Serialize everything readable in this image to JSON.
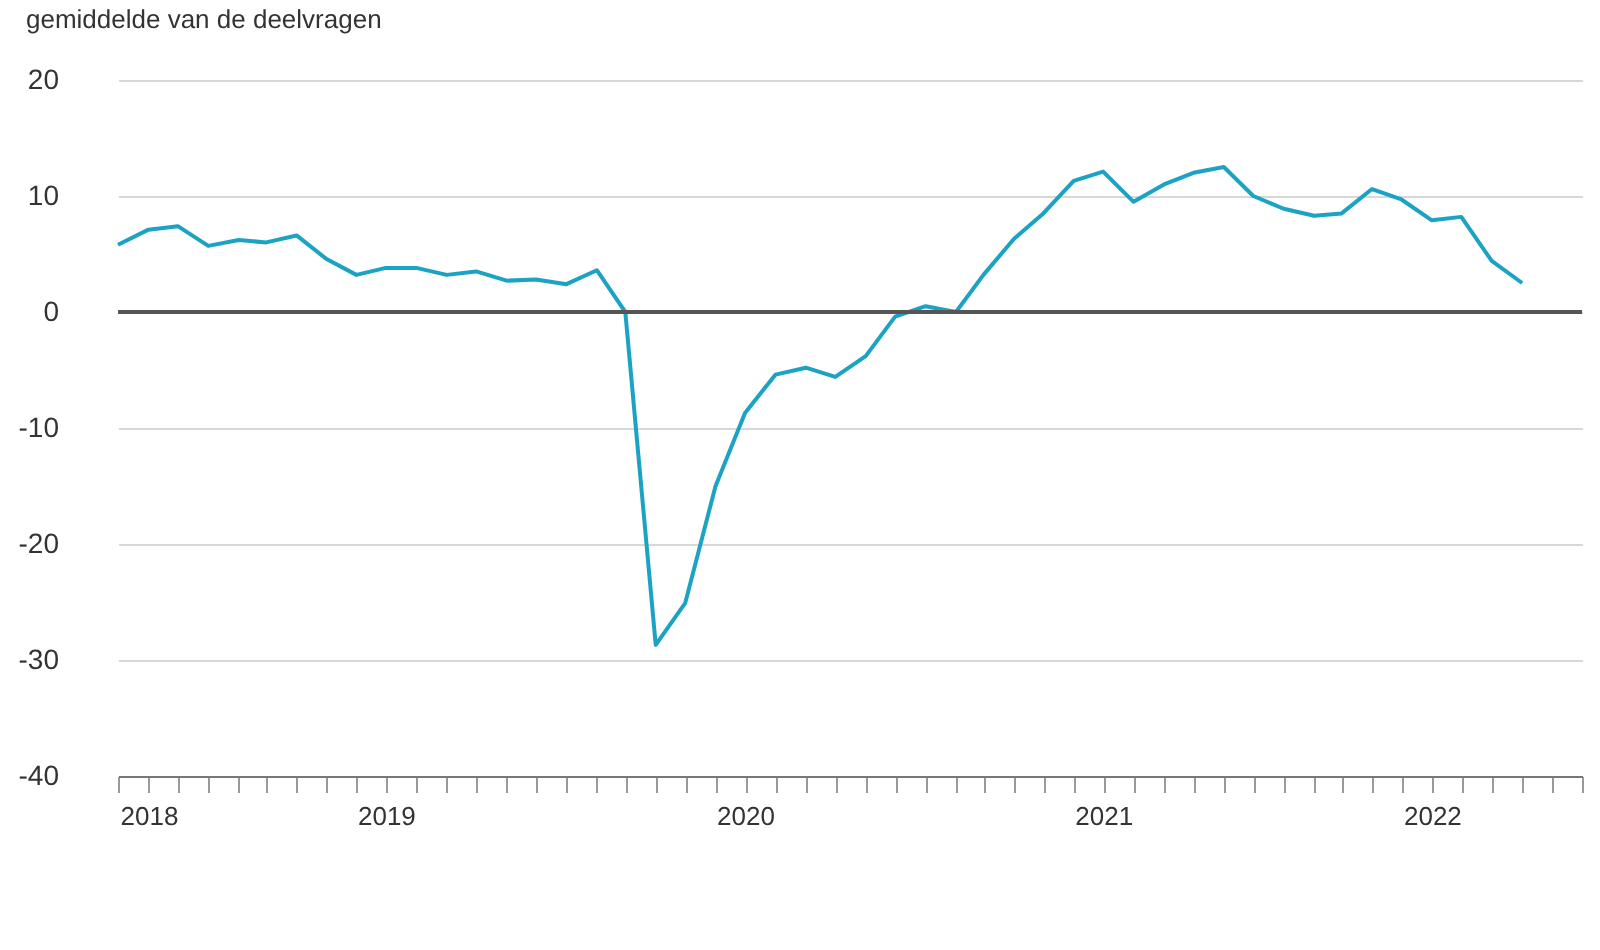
{
  "chart_data": {
    "type": "line",
    "title": "gemiddelde van de deelvragen",
    "x": [
      "2018-10",
      "2018-11",
      "2018-12",
      "2019-01",
      "2019-02",
      "2019-03",
      "2019-04",
      "2019-05",
      "2019-06",
      "2019-07",
      "2019-08",
      "2019-09",
      "2019-10",
      "2019-11",
      "2019-12",
      "2020-01",
      "2020-02",
      "2020-03",
      "2020-04",
      "2020-05",
      "2020-06",
      "2020-07",
      "2020-08",
      "2020-09",
      "2020-10",
      "2020-11",
      "2020-12",
      "2021-01",
      "2021-02",
      "2021-03",
      "2021-04",
      "2021-05",
      "2021-06",
      "2021-07",
      "2021-08",
      "2021-09",
      "2021-10",
      "2021-11",
      "2021-12",
      "2022-01",
      "2022-02",
      "2022-03",
      "2022-04",
      "2022-05",
      "2022-06",
      "2022-07",
      "2022-08",
      "2022-09"
    ],
    "series": [
      {
        "color": "#1ca3c4",
        "values": [
          5.8,
          7.1,
          7.4,
          5.7,
          6.2,
          6.0,
          6.6,
          4.6,
          3.2,
          3.8,
          3.8,
          3.2,
          3.5,
          2.7,
          2.8,
          2.4,
          3.6,
          0,
          -28.7,
          -25.1,
          -15.0,
          -8.7,
          -5.4,
          -4.8,
          -5.6,
          -3.8,
          -0.4,
          0.5,
          0.0,
          3.2,
          6.3,
          8.5,
          11.3,
          12.1,
          9.5,
          11.0,
          12.0,
          12.5,
          10.0,
          8.9,
          8.3,
          8.5,
          10.6,
          9.7,
          7.9,
          8.2,
          4.4,
          2.5
        ]
      }
    ],
    "ylim": [
      -40,
      20
    ],
    "yticks": [
      -40,
      -30,
      -20,
      -10,
      0,
      10,
      20
    ],
    "xlim": [
      "2018-10",
      "2022-11"
    ],
    "xticks": [
      {
        "value": "2018-10",
        "label": null
      },
      {
        "value": "2018-11",
        "label": "2018"
      },
      {
        "value": "2018-12",
        "label": null
      },
      {
        "value": "2019-01",
        "label": null
      },
      {
        "value": "2019-02",
        "label": null
      },
      {
        "value": "2019-03",
        "label": null
      },
      {
        "value": "2019-04",
        "label": null
      },
      {
        "value": "2019-05",
        "label": null
      },
      {
        "value": "2019-06",
        "label": null
      },
      {
        "value": "2019-07",
        "label": "2019"
      },
      {
        "value": "2019-08",
        "label": null
      },
      {
        "value": "2019-09",
        "label": null
      },
      {
        "value": "2019-10",
        "label": null
      },
      {
        "value": "2019-11",
        "label": null
      },
      {
        "value": "2019-12",
        "label": null
      },
      {
        "value": "2020-01",
        "label": null
      },
      {
        "value": "2020-02",
        "label": null
      },
      {
        "value": "2020-03",
        "label": null
      },
      {
        "value": "2020-04",
        "label": null
      },
      {
        "value": "2020-05",
        "label": null
      },
      {
        "value": "2020-06",
        "label": null
      },
      {
        "value": "2020-07",
        "label": "2020"
      },
      {
        "value": "2020-08",
        "label": null
      },
      {
        "value": "2020-09",
        "label": null
      },
      {
        "value": "2020-10",
        "label": null
      },
      {
        "value": "2020-11",
        "label": null
      },
      {
        "value": "2020-12",
        "label": null
      },
      {
        "value": "2021-01",
        "label": null
      },
      {
        "value": "2021-02",
        "label": null
      },
      {
        "value": "2021-03",
        "label": null
      },
      {
        "value": "2021-04",
        "label": null
      },
      {
        "value": "2021-05",
        "label": null
      },
      {
        "value": "2021-06",
        "label": null
      },
      {
        "value": "2021-07",
        "label": "2021"
      },
      {
        "value": "2021-08",
        "label": null
      },
      {
        "value": "2021-09",
        "label": null
      },
      {
        "value": "2021-10",
        "label": null
      },
      {
        "value": "2021-11",
        "label": null
      },
      {
        "value": "2021-12",
        "label": null
      },
      {
        "value": "2022-01",
        "label": null
      },
      {
        "value": "2022-02",
        "label": null
      },
      {
        "value": "2022-03",
        "label": null
      },
      {
        "value": "2022-04",
        "label": null
      },
      {
        "value": "2022-05",
        "label": null
      },
      {
        "value": "2022-06",
        "label": "2022"
      },
      {
        "value": "2022-07",
        "label": null
      },
      {
        "value": "2022-08",
        "label": null
      },
      {
        "value": "2022-09",
        "label": null
      },
      {
        "value": "2022-10",
        "label": null
      },
      {
        "value": "2022-11",
        "label": null
      }
    ],
    "grid": "y",
    "ref_lines": [
      {
        "axis": "y",
        "value": 0,
        "color": "#555555"
      }
    ],
    "line_style": "solid",
    "marker": "none"
  }
}
